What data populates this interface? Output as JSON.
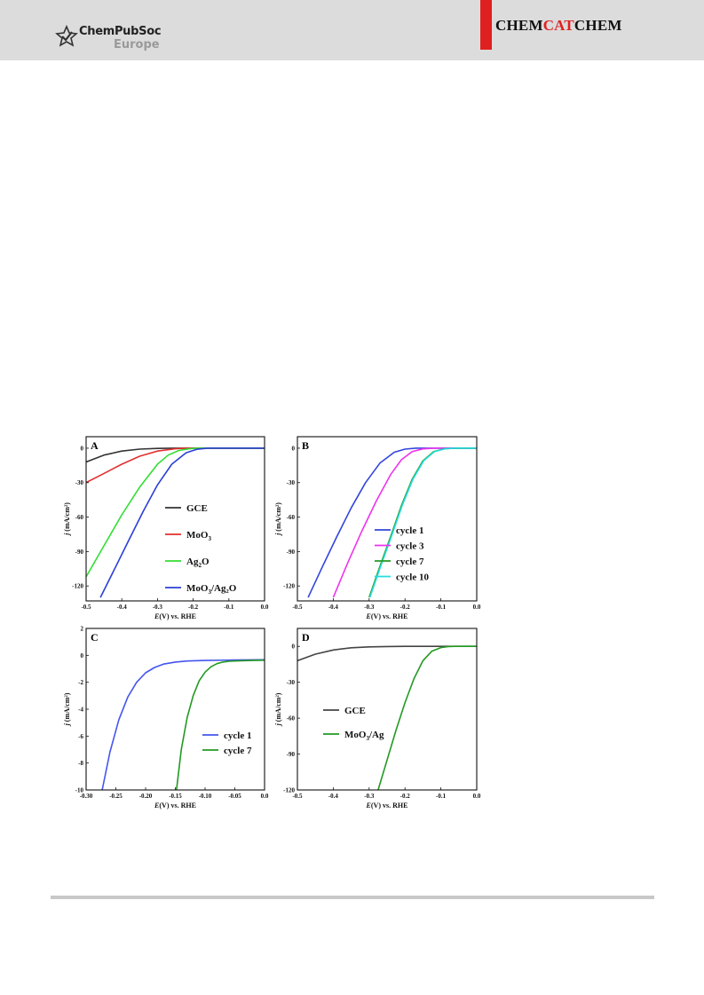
{
  "header": {
    "logo_main": "ChemPubSoc",
    "logo_sub": "Europe",
    "journal_part1": "CHEM",
    "journal_part2": "CAT",
    "journal_part3": "CHEM",
    "accent_color": "#e02020"
  },
  "chart_data": [
    {
      "type": "line",
      "panel": "A",
      "xlabel_italic": "E",
      "xlabel_rest": "(V) vs. RHE",
      "ylabel_italic": "j",
      "ylabel_rest": " (mA/cm²)",
      "xlim": [
        -0.5,
        0.0
      ],
      "ylim": [
        -133,
        10
      ],
      "xticks": [
        -0.5,
        -0.4,
        -0.3,
        -0.2,
        -0.1,
        0.0
      ],
      "xtick_labels": [
        "-0.5",
        "-0.4",
        "-0.3",
        "-0.2",
        "-0.1",
        "0.0"
      ],
      "yticks": [
        0,
        -30,
        -60,
        -90,
        -120
      ],
      "ytick_labels": [
        "0",
        "-30",
        "-60",
        "-90",
        "-120"
      ],
      "legend_placement": "right",
      "series": [
        {
          "name": "GCE",
          "color": "#333333",
          "x": [
            -0.5,
            -0.45,
            -0.4,
            -0.35,
            -0.3,
            -0.25,
            -0.2,
            0.0
          ],
          "y": [
            -12,
            -6,
            -2.5,
            -0.8,
            -0.2,
            0,
            0,
            0
          ]
        },
        {
          "name": "MoO3",
          "name_base": "MoO",
          "name_sub": "3",
          "name_tail": "",
          "color": "#e03030",
          "x": [
            -0.5,
            -0.45,
            -0.4,
            -0.35,
            -0.3,
            -0.25,
            -0.22,
            0.0
          ],
          "y": [
            -30,
            -22,
            -14,
            -7,
            -2.5,
            -0.5,
            0,
            0
          ]
        },
        {
          "name": "Ag2O",
          "name_base": "Ag",
          "name_sub": "2",
          "name_tail": "O",
          "color": "#33dd33",
          "x": [
            -0.5,
            -0.45,
            -0.4,
            -0.35,
            -0.3,
            -0.27,
            -0.24,
            -0.21,
            -0.19,
            0.0
          ],
          "y": [
            -112,
            -85,
            -58,
            -34,
            -14,
            -6,
            -2,
            -0.5,
            0,
            0
          ]
        },
        {
          "name": "MoO3/Ag2O",
          "name_base": "MoO",
          "name_sub": "3",
          "name_tail": "/Ag₂O",
          "color": "#2b3fd6",
          "x": [
            -0.46,
            -0.42,
            -0.38,
            -0.34,
            -0.3,
            -0.26,
            -0.22,
            -0.19,
            -0.16,
            0.0
          ],
          "y": [
            -130,
            -105,
            -80,
            -55,
            -32,
            -14,
            -4,
            -1,
            0,
            0
          ]
        }
      ]
    },
    {
      "type": "line",
      "panel": "B",
      "xlabel_italic": "E",
      "xlabel_rest": "(V) vs. RHE",
      "ylabel_italic": "j",
      "ylabel_rest": " (mA/cm²)",
      "xlim": [
        -0.5,
        0.0
      ],
      "ylim": [
        -133,
        10
      ],
      "xticks": [
        -0.5,
        -0.4,
        -0.3,
        -0.2,
        -0.1,
        0.0
      ],
      "xtick_labels": [
        "-0.5",
        "-0.4",
        "-0.3",
        "-0.2",
        "-0.1",
        "0.0"
      ],
      "yticks": [
        0,
        -30,
        -60,
        -90,
        -120
      ],
      "ytick_labels": [
        "0",
        "-30",
        "-60",
        "-90",
        "-120"
      ],
      "legend_placement": "right",
      "series": [
        {
          "name": "cycle 1",
          "color": "#3344dd",
          "x": [
            -0.47,
            -0.43,
            -0.39,
            -0.35,
            -0.31,
            -0.27,
            -0.23,
            -0.2,
            -0.17,
            0.0
          ],
          "y": [
            -130,
            -103,
            -77,
            -52,
            -30,
            -13,
            -3.5,
            -0.8,
            0,
            0
          ]
        },
        {
          "name": "cycle 3",
          "color": "#ee33ee",
          "x": [
            -0.4,
            -0.36,
            -0.32,
            -0.28,
            -0.24,
            -0.21,
            -0.18,
            -0.15,
            -0.12,
            0.0
          ],
          "y": [
            -130,
            -100,
            -72,
            -46,
            -23,
            -10,
            -3,
            -0.6,
            0,
            0
          ]
        },
        {
          "name": "cycle 7",
          "color": "#229922",
          "x": [
            -0.3,
            -0.27,
            -0.24,
            -0.21,
            -0.18,
            -0.15,
            -0.12,
            -0.09,
            -0.06,
            0.0
          ],
          "y": [
            -130,
            -103,
            -77,
            -50,
            -27,
            -11,
            -3,
            -0.5,
            0,
            0
          ]
        },
        {
          "name": "cycle 10",
          "color": "#22dddd",
          "x": [
            -0.298,
            -0.268,
            -0.238,
            -0.208,
            -0.178,
            -0.148,
            -0.118,
            -0.088,
            -0.058,
            0.0
          ],
          "y": [
            -130,
            -103,
            -77,
            -50,
            -27,
            -11,
            -3,
            -0.5,
            0,
            0
          ]
        }
      ]
    },
    {
      "type": "line",
      "panel": "C",
      "xlabel_italic": "E",
      "xlabel_rest": "(V) vs. RHE",
      "ylabel_italic": "j",
      "ylabel_rest": " (mA/cm²)",
      "xlim": [
        -0.3,
        0.0
      ],
      "ylim": [
        -10,
        2
      ],
      "xticks": [
        -0.3,
        -0.25,
        -0.2,
        -0.15,
        -0.1,
        -0.05,
        0.0
      ],
      "xtick_labels": [
        "-0.30",
        "-0.25",
        "-0.20",
        "-0.15",
        "-0.10",
        "-0.05",
        "0.0"
      ],
      "yticks": [
        2,
        0,
        -2,
        -4,
        -6,
        -8,
        -10
      ],
      "ytick_labels": [
        "2",
        "0",
        "-2",
        "-4",
        "-6",
        "-8",
        "-10"
      ],
      "legend_placement": "right",
      "series": [
        {
          "name": "cycle 1",
          "color": "#4455ee",
          "x": [
            -0.273,
            -0.26,
            -0.245,
            -0.23,
            -0.215,
            -0.2,
            -0.185,
            -0.17,
            -0.15,
            -0.13,
            -0.1,
            -0.05,
            0.0
          ],
          "y": [
            -10,
            -7.2,
            -4.8,
            -3.1,
            -2.0,
            -1.3,
            -0.9,
            -0.65,
            -0.5,
            -0.42,
            -0.38,
            -0.35,
            -0.33
          ]
        },
        {
          "name": "cycle 7",
          "color": "#229922",
          "x": [
            -0.148,
            -0.14,
            -0.13,
            -0.12,
            -0.11,
            -0.1,
            -0.09,
            -0.08,
            -0.07,
            -0.06,
            -0.04,
            -0.02,
            0.0
          ],
          "y": [
            -10,
            -7.0,
            -4.6,
            -3.0,
            -1.9,
            -1.25,
            -0.85,
            -0.62,
            -0.5,
            -0.44,
            -0.4,
            -0.38,
            -0.36
          ]
        }
      ]
    },
    {
      "type": "line",
      "panel": "D",
      "xlabel_italic": "E",
      "xlabel_rest": "(V) vs. RHE",
      "ylabel_italic": "j",
      "ylabel_rest": " (mA/cm²)",
      "xlim": [
        -0.5,
        0.0
      ],
      "ylim": [
        -120,
        15
      ],
      "xticks": [
        -0.5,
        -0.4,
        -0.3,
        -0.2,
        -0.1,
        0.0
      ],
      "xtick_labels": [
        "-0.5",
        "-0.4",
        "-0.3",
        "-0.2",
        "-0.1",
        "0.0"
      ],
      "yticks": [
        0,
        -30,
        -60,
        -90,
        -120
      ],
      "ytick_labels": [
        "0",
        "-30",
        "-60",
        "-90",
        "-120"
      ],
      "legend_placement": "left",
      "series": [
        {
          "name": "GCE",
          "color": "#444444",
          "x": [
            -0.5,
            -0.45,
            -0.4,
            -0.35,
            -0.3,
            -0.25,
            -0.2,
            0.0
          ],
          "y": [
            -12,
            -6.5,
            -3,
            -1.2,
            -0.4,
            -0.1,
            0,
            0
          ]
        },
        {
          "name": "MoO3/Ag",
          "name_base": "MoO",
          "name_sub": "3",
          "name_tail": "/Ag",
          "color": "#229922",
          "x": [
            -0.275,
            -0.25,
            -0.225,
            -0.2,
            -0.175,
            -0.15,
            -0.125,
            -0.1,
            -0.08,
            -0.06,
            0.0
          ],
          "y": [
            -120,
            -95,
            -70,
            -47,
            -27,
            -12,
            -4,
            -1,
            -0.2,
            0,
            0
          ]
        }
      ]
    }
  ]
}
